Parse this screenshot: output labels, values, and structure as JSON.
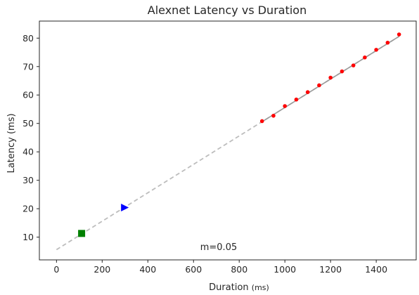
{
  "chart_data": {
    "type": "scatter",
    "title": "Alexnet Latency vs Duration",
    "xlabel": "Duration",
    "xlabel_unit": "(ms)",
    "ylabel": "Latency (ms)",
    "xlim": [
      -75,
      1575
    ],
    "ylim": [
      2,
      86
    ],
    "xticks": [
      0,
      200,
      400,
      600,
      800,
      1000,
      1200,
      1400
    ],
    "yticks": [
      10,
      20,
      30,
      40,
      50,
      60,
      70,
      80
    ],
    "grid": false,
    "annotation": "m=0.05",
    "annotation_pos": [
      710,
      5.5
    ],
    "fit_line": {
      "slope": 0.05,
      "intercept": 5.6,
      "x": [
        0,
        1500
      ],
      "full_color": "#bdbdbd",
      "overlay_x": [
        900,
        1500
      ],
      "overlay_color": "#9a9a9a"
    },
    "series": [
      {
        "marker": "circle",
        "color": "#ff0000",
        "points": [
          [
            900,
            50.8
          ],
          [
            950,
            52.7
          ],
          [
            1000,
            56.1
          ],
          [
            1050,
            58.4
          ],
          [
            1100,
            61.0
          ],
          [
            1150,
            63.4
          ],
          [
            1200,
            66.1
          ],
          [
            1250,
            68.3
          ],
          [
            1300,
            70.4
          ],
          [
            1350,
            73.2
          ],
          [
            1400,
            75.9
          ],
          [
            1450,
            78.4
          ],
          [
            1500,
            81.3
          ]
        ]
      },
      {
        "marker": "square",
        "color": "#008000",
        "points": [
          [
            110,
            11.3
          ]
        ]
      },
      {
        "marker": "triangle-right",
        "color": "#0000ff",
        "points": [
          [
            298,
            20.4
          ]
        ]
      }
    ]
  }
}
